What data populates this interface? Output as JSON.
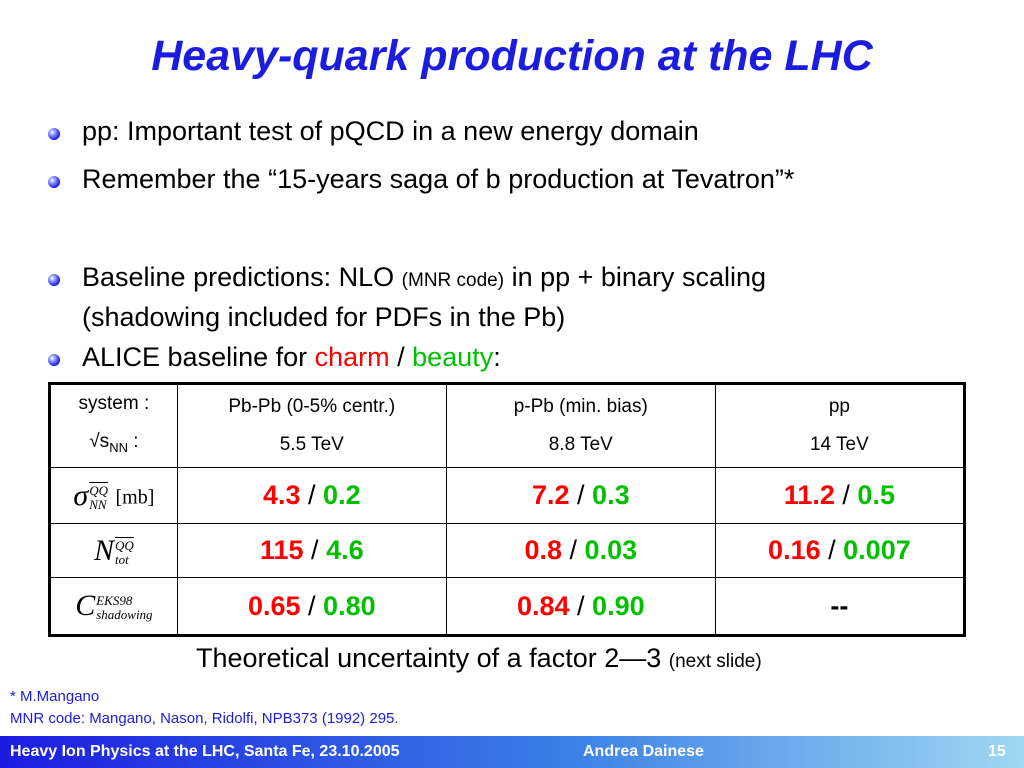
{
  "slide": {
    "title": "Heavy-quark production at the LHC",
    "bullets": [
      {
        "text": "pp: Important test of pQCD in a new energy domain"
      },
      {
        "text": "Remember the “15-years saga of b production at Tevatron”*"
      },
      {
        "text_a": "Baseline predictions: NLO ",
        "text_small": "(MNR code)",
        "text_b": " in pp + binary scaling",
        "sub": "(shadowing included for PDFs in the Pb)"
      },
      {
        "text_a": "ALICE baseline for ",
        "charm": "charm",
        "sep": " / ",
        "beauty": "beauty",
        "text_b": ":"
      }
    ]
  },
  "table": {
    "header": {
      "system_label": "system :",
      "sqrt_label": "√s",
      "sqrt_sub": "NN",
      "sqrt_colon": " :",
      "columns": [
        {
          "name": "Pb-Pb (0-5% centr.)",
          "energy": "5.5 TeV"
        },
        {
          "name": "p-Pb (min. bias)",
          "energy": "8.8 TeV"
        },
        {
          "name": "pp",
          "energy": "14 TeV"
        }
      ]
    },
    "rows": [
      {
        "symbol": "σ",
        "sup": "QQ",
        "sub": "NN",
        "unit": "[mb]",
        "cells": [
          {
            "charm": "4.3",
            "beauty": "0.2"
          },
          {
            "charm": "7.2",
            "beauty": "0.3"
          },
          {
            "charm": "11.2",
            "beauty": "0.5"
          }
        ]
      },
      {
        "symbol": "N",
        "sup": "QQ",
        "sub": "tot",
        "unit": "",
        "cells": [
          {
            "charm": "115",
            "beauty": "4.6"
          },
          {
            "charm": "0.8",
            "beauty": "0.03"
          },
          {
            "charm": "0.16",
            "beauty": "0.007"
          }
        ]
      },
      {
        "symbol": "C",
        "sup": "EKS98",
        "sub": "shadowing",
        "unit": "",
        "cells": [
          {
            "charm": "0.65",
            "beauty": "0.80"
          },
          {
            "charm": "0.84",
            "beauty": "0.90"
          },
          {
            "dash": "--"
          }
        ]
      }
    ],
    "separator": "/"
  },
  "note": {
    "main": "Theoretical uncertainty of a factor 2—3 ",
    "small": "(next slide)"
  },
  "footnotes": [
    "* M.Mangano",
    "MNR code: Mangano, Nason, Ridolfi, NPB373 (1992) 295."
  ],
  "footer": {
    "left": "Heavy Ion Physics at the LHC, Santa Fe, 23.10.2005",
    "center": "Andrea Dainese",
    "page": "15"
  },
  "colors": {
    "title": "#1c1ce0",
    "charm": "#ff0000",
    "beauty": "#00c000"
  }
}
